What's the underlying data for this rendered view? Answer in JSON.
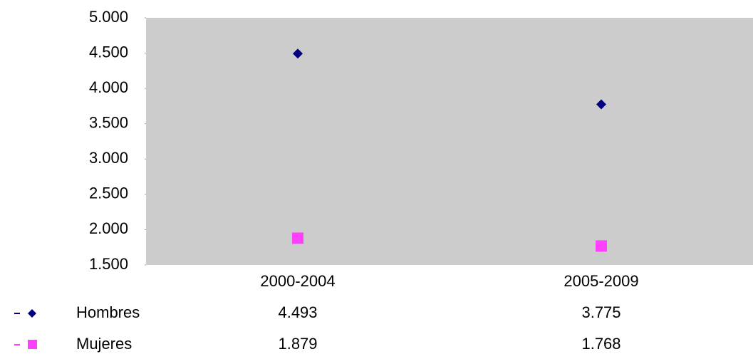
{
  "chart_data": {
    "type": "line",
    "categories": [
      "2000-2004",
      "2005-2009"
    ],
    "series": [
      {
        "name": "Hombres",
        "color": "#000080",
        "marker": "diamond",
        "values": [
          4493,
          3775
        ],
        "value_labels": [
          "4.493",
          "3.775"
        ]
      },
      {
        "name": "Mujeres",
        "color": "#ff40ff",
        "marker": "square",
        "values": [
          1879,
          1768
        ],
        "value_labels": [
          "1.879",
          "1.768"
        ]
      }
    ],
    "ylim": [
      1500,
      5000
    ],
    "yticks": [
      {
        "value": 1500,
        "label": "1.500"
      },
      {
        "value": 2000,
        "label": "2.000"
      },
      {
        "value": 2500,
        "label": "2.500"
      },
      {
        "value": 3000,
        "label": "3.000"
      },
      {
        "value": 3500,
        "label": "3.500"
      },
      {
        "value": 4000,
        "label": "4.000"
      },
      {
        "value": 4500,
        "label": "4.500"
      },
      {
        "value": 5000,
        "label": "5.000"
      }
    ],
    "plot_background": "#cccccc"
  }
}
